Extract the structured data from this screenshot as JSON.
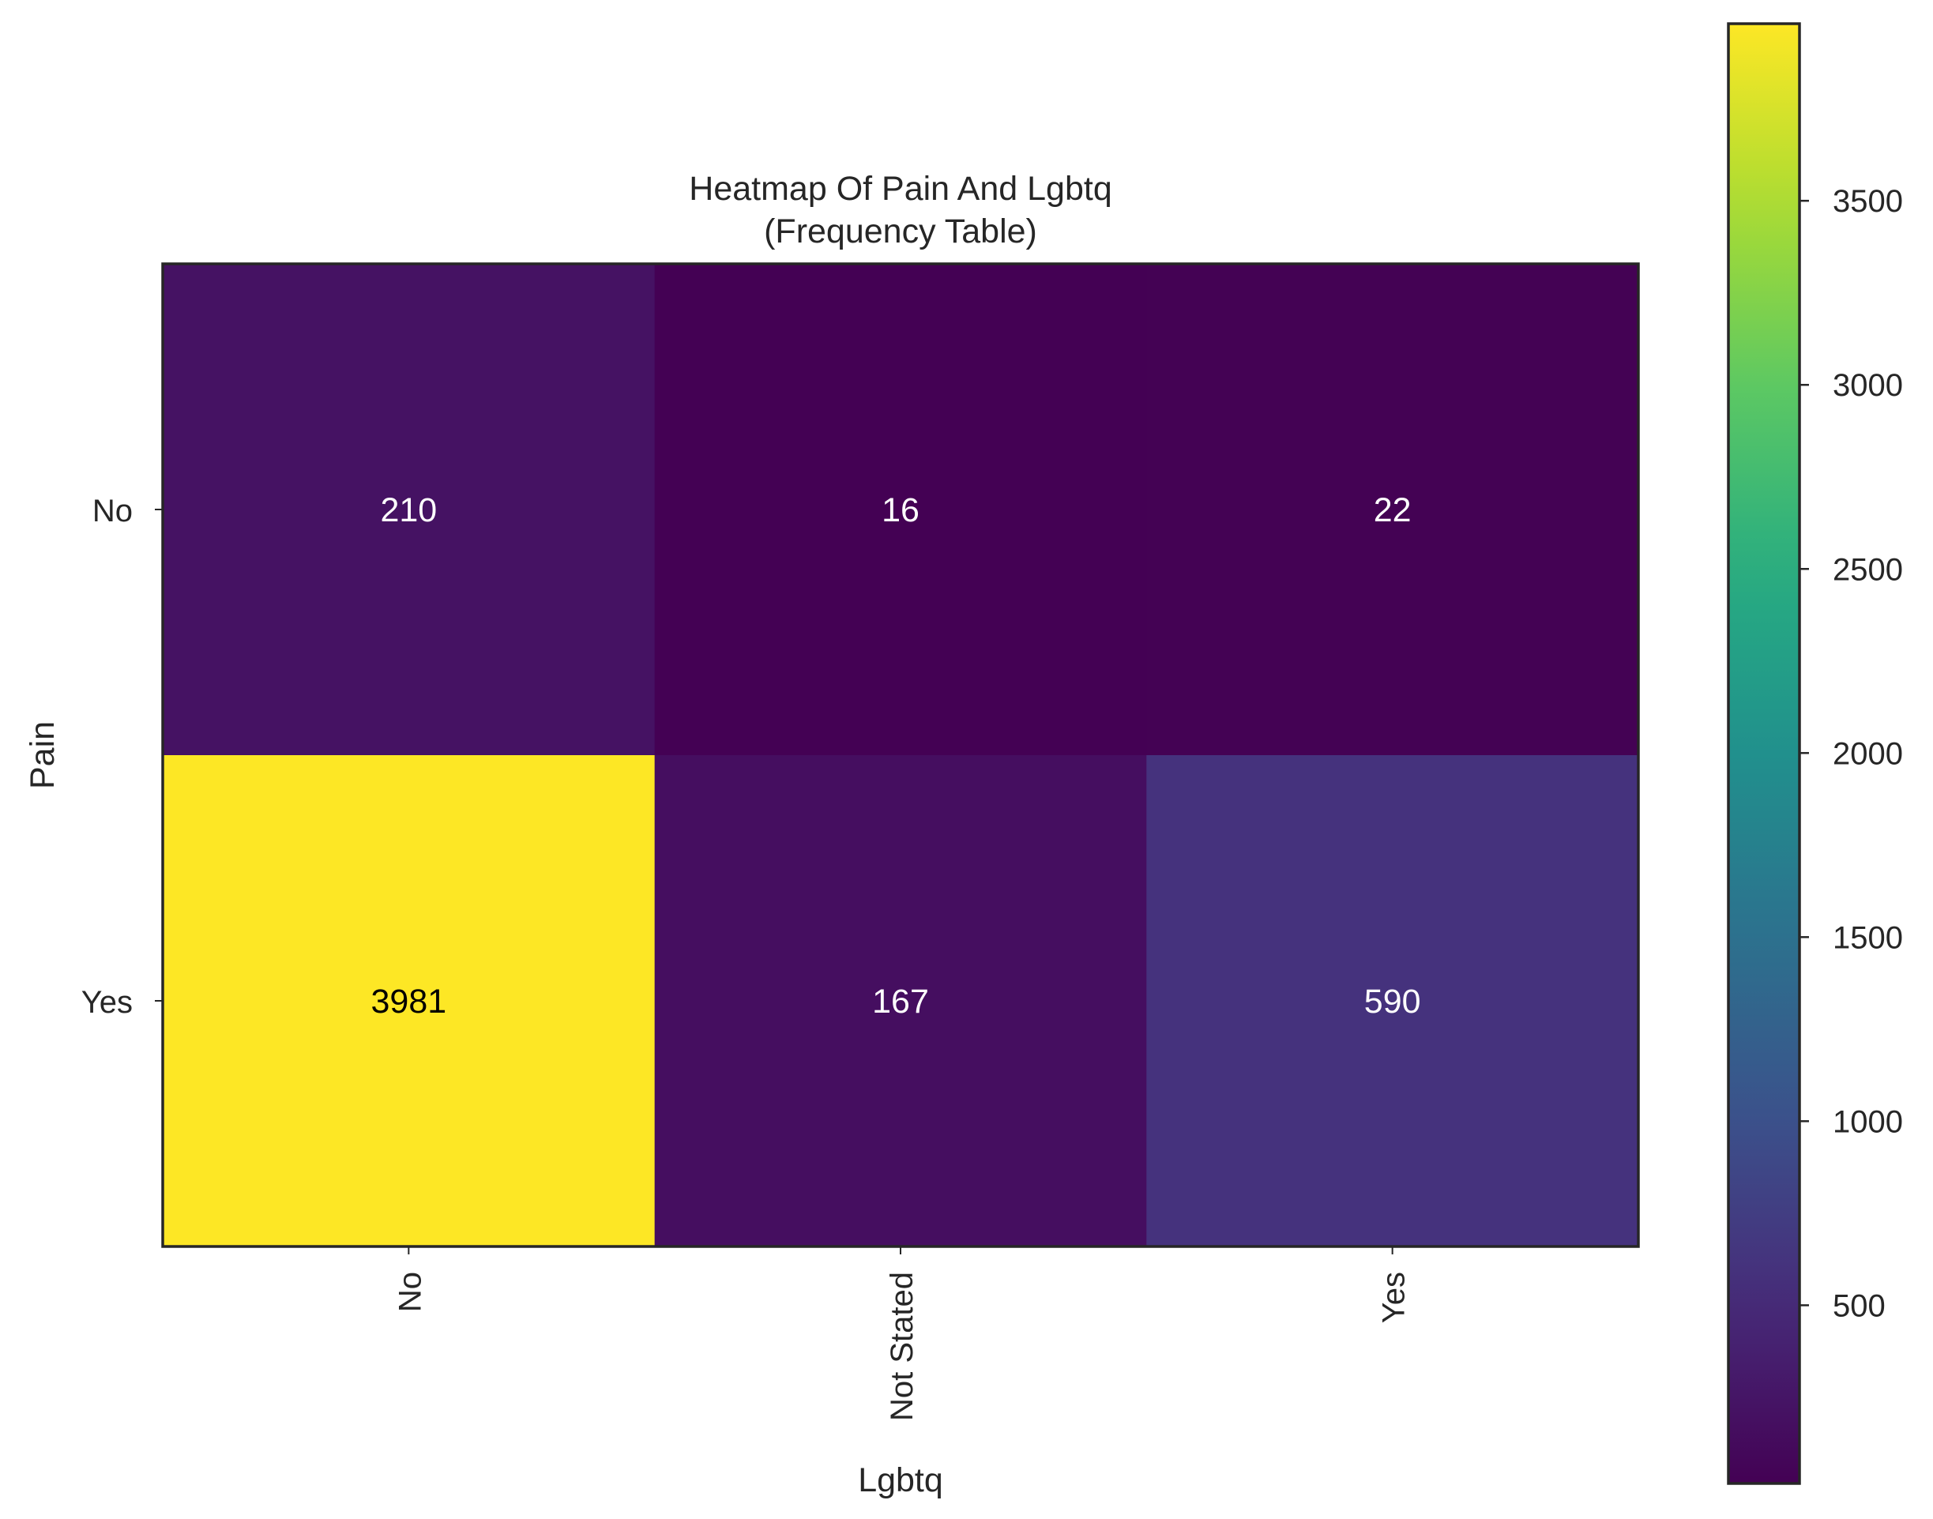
{
  "chart_data": {
    "type": "heatmap",
    "title": "Heatmap Of Pain And Lgbtq",
    "subtitle": "(Frequency Table)",
    "xlabel": "Lgbtq",
    "ylabel": "Pain",
    "x_categories": [
      "No",
      "Not Stated",
      "Yes"
    ],
    "y_categories": [
      "No",
      "Yes"
    ],
    "values": [
      [
        210,
        16,
        22
      ],
      [
        3981,
        167,
        590
      ]
    ],
    "colorbar": {
      "colormap": "viridis",
      "vmin": 16,
      "vmax": 3981,
      "ticks": [
        500,
        1000,
        1500,
        2000,
        2500,
        3000,
        3500
      ]
    },
    "grid": false
  }
}
